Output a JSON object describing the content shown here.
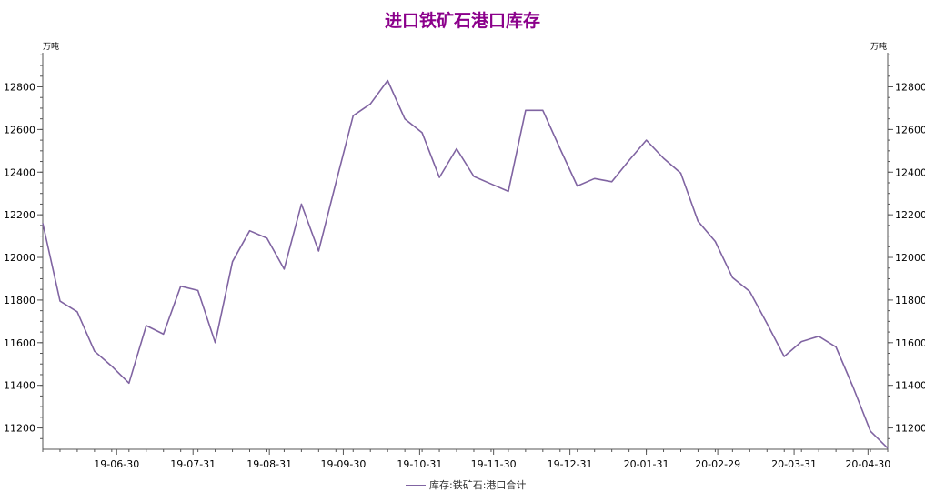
{
  "title": "进口铁矿石港口库存",
  "unit_left": "万吨",
  "unit_right": "万吨",
  "chart_data": {
    "type": "line",
    "title": "进口铁矿石港口库存",
    "ylabel": "万吨",
    "ylim": [
      11100,
      12960
    ],
    "yticks": [
      11200,
      11400,
      11600,
      11800,
      12000,
      12200,
      12400,
      12600,
      12800
    ],
    "x_ticks": [
      "19-06-30",
      "19-07-31",
      "19-08-31",
      "19-09-30",
      "19-10-31",
      "19-11-30",
      "19-12-31",
      "20-01-31",
      "20-02-29",
      "20-03-31",
      "20-04-30"
    ],
    "grid": false,
    "legend_position": "bottom",
    "series": [
      {
        "name": "库存:铁矿石:港口合计",
        "color": "#8064A2",
        "points": [
          [
            "2019-05-31",
            12160
          ],
          [
            "2019-06-07",
            11795
          ],
          [
            "2019-06-14",
            11745
          ],
          [
            "2019-06-21",
            11560
          ],
          [
            "2019-06-28",
            11490
          ],
          [
            "2019-07-05",
            11410
          ],
          [
            "2019-07-12",
            11680
          ],
          [
            "2019-07-19",
            11640
          ],
          [
            "2019-07-26",
            11865
          ],
          [
            "2019-08-02",
            11845
          ],
          [
            "2019-08-09",
            11600
          ],
          [
            "2019-08-16",
            11980
          ],
          [
            "2019-08-23",
            12125
          ],
          [
            "2019-08-30",
            12090
          ],
          [
            "2019-09-06",
            11945
          ],
          [
            "2019-09-13",
            12250
          ],
          [
            "2019-09-20",
            12030
          ],
          [
            "2019-09-27",
            12350
          ],
          [
            "2019-10-04",
            12665
          ],
          [
            "2019-10-11",
            12720
          ],
          [
            "2019-10-18",
            12830
          ],
          [
            "2019-10-25",
            12650
          ],
          [
            "2019-11-01",
            12585
          ],
          [
            "2019-11-08",
            12375
          ],
          [
            "2019-11-15",
            12510
          ],
          [
            "2019-11-22",
            12380
          ],
          [
            "2019-11-29",
            12345
          ],
          [
            "2019-12-06",
            12310
          ],
          [
            "2019-12-13",
            12690
          ],
          [
            "2019-12-20",
            12690
          ],
          [
            "2019-12-27",
            12510
          ],
          [
            "2020-01-03",
            12335
          ],
          [
            "2020-01-10",
            12370
          ],
          [
            "2020-01-17",
            12355
          ],
          [
            "2020-01-24",
            12455
          ],
          [
            "2020-01-31",
            12550
          ],
          [
            "2020-02-07",
            12465
          ],
          [
            "2020-02-14",
            12395
          ],
          [
            "2020-02-21",
            12170
          ],
          [
            "2020-02-28",
            12075
          ],
          [
            "2020-03-06",
            11905
          ],
          [
            "2020-03-13",
            11840
          ],
          [
            "2020-03-20",
            11690
          ],
          [
            "2020-03-27",
            11535
          ],
          [
            "2020-04-03",
            11605
          ],
          [
            "2020-04-10",
            11630
          ],
          [
            "2020-04-17",
            11580
          ],
          [
            "2020-04-24",
            11390
          ],
          [
            "2020-05-01",
            11185
          ],
          [
            "2020-05-08",
            11105
          ]
        ]
      }
    ]
  }
}
